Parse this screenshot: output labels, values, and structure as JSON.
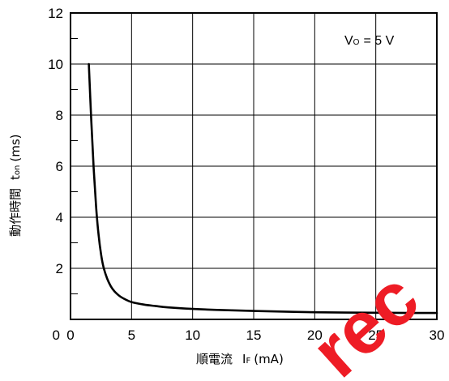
{
  "chart_data": {
    "type": "line",
    "title": "",
    "xlabel": {
      "main": "順電流",
      "symbol": "I",
      "sub": "F",
      "unit": "(mA)"
    },
    "ylabel": {
      "main": "動作時間",
      "symbol": "t",
      "sub": "on",
      "unit": "(ms)"
    },
    "annotation": {
      "symbol": "V",
      "sub": "O",
      "rest": "= 5 V"
    },
    "xlim": [
      0,
      30
    ],
    "ylim": [
      0,
      12
    ],
    "x_ticks": [
      0,
      5,
      10,
      15,
      20,
      25,
      30
    ],
    "x_tick_labels": [
      "0",
      "5",
      "10",
      "15",
      "20",
      "25",
      "30"
    ],
    "y_ticks": [
      2,
      4,
      6,
      8,
      10,
      12
    ],
    "y_tick_labels": [
      "2",
      "4",
      "6",
      "8",
      "10",
      "12"
    ],
    "y_minor_ticks": [
      1,
      3,
      5,
      7,
      9,
      11
    ],
    "x_gridlines": [
      5,
      10,
      15,
      20,
      25
    ],
    "y_gridlines": [
      2,
      4,
      6,
      8,
      10
    ],
    "grid": true,
    "series": [
      {
        "x": [
          1.5,
          1.7,
          1.9,
          2.1,
          2.3,
          2.5,
          2.7,
          3.0,
          3.3,
          3.6,
          4.0,
          4.5,
          5.0,
          6.0,
          7.0,
          8.0,
          10.0,
          12.0,
          15.0,
          20.0,
          25.0,
          30.0
        ],
        "y": [
          10.0,
          7.8,
          5.9,
          4.4,
          3.3,
          2.55,
          2.05,
          1.6,
          1.3,
          1.1,
          0.92,
          0.78,
          0.68,
          0.58,
          0.52,
          0.47,
          0.41,
          0.37,
          0.33,
          0.28,
          0.26,
          0.25
        ]
      }
    ],
    "color": "#000000"
  },
  "watermark": {
    "text": "rec",
    "color": "#ee1c25"
  }
}
